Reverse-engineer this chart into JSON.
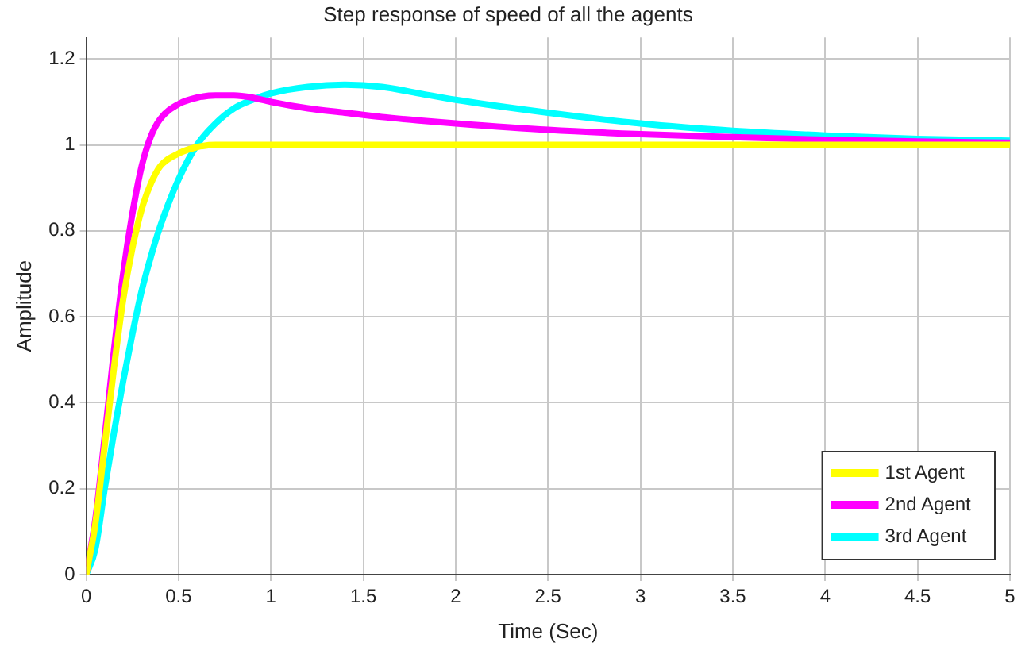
{
  "chart_data": {
    "type": "line",
    "title": "Step response of speed of all the agents",
    "xlabel": "Time (Sec)",
    "ylabel": "Amplitude",
    "x": [
      0,
      0.05,
      0.1,
      0.15,
      0.2,
      0.25,
      0.3,
      0.35,
      0.4,
      0.5,
      0.6,
      0.7,
      0.8,
      0.9,
      1.0,
      1.2,
      1.4,
      1.6,
      1.8,
      2,
      2.5,
      3,
      3.5,
      4,
      4.5,
      5
    ],
    "series": [
      {
        "name": "1st Agent",
        "color": "#ffff00",
        "values": [
          0,
          0.12,
          0.3,
          0.48,
          0.64,
          0.76,
          0.85,
          0.91,
          0.95,
          0.98,
          0.995,
          1,
          1,
          1,
          1,
          1,
          1,
          1,
          1,
          1,
          1,
          1,
          1,
          1,
          1,
          1
        ]
      },
      {
        "name": "2nd Agent",
        "color": "#ff00ff",
        "values": [
          0,
          0.13,
          0.32,
          0.52,
          0.7,
          0.84,
          0.95,
          1.02,
          1.06,
          1.095,
          1.11,
          1.115,
          1.115,
          1.11,
          1.1,
          1.085,
          1.075,
          1.065,
          1.057,
          1.05,
          1.035,
          1.025,
          1.018,
          1.012,
          1.008,
          1.005
        ]
      },
      {
        "name": "3rd Agent",
        "color": "#00ffff",
        "values": [
          0,
          0.06,
          0.2,
          0.33,
          0.45,
          0.56,
          0.66,
          0.74,
          0.81,
          0.92,
          1.0,
          1.05,
          1.085,
          1.105,
          1.12,
          1.135,
          1.14,
          1.135,
          1.12,
          1.105,
          1.075,
          1.05,
          1.033,
          1.022,
          1.014,
          1.01
        ]
      }
    ],
    "xlim": [
      0,
      5
    ],
    "xticks": [
      0,
      0.5,
      1,
      1.5,
      2,
      2.5,
      3,
      3.5,
      4,
      4.5,
      5
    ],
    "ylim": [
      0,
      1.25
    ],
    "yticks": [
      0,
      0.2,
      0.4,
      0.6,
      0.8,
      1,
      1.2
    ],
    "grid": true,
    "legend": "bottom right",
    "marker": "none",
    "line_style": "solid"
  }
}
